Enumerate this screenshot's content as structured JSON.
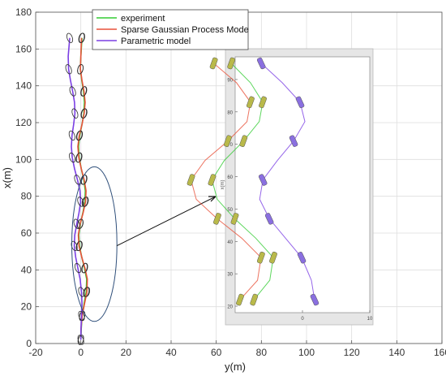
{
  "chart_data": {
    "type": "line",
    "title": "",
    "xlabel": "y(m)",
    "ylabel": "x(m)",
    "xlim": [
      -20,
      160
    ],
    "ylim": [
      0,
      180
    ],
    "xticks": [
      -20,
      0,
      20,
      40,
      60,
      80,
      100,
      120,
      140,
      160
    ],
    "yticks": [
      0,
      20,
      40,
      60,
      80,
      100,
      120,
      140,
      160,
      180
    ],
    "grid": true,
    "legend_position": "top-center",
    "series": [
      {
        "name": "experiment",
        "color": "#33cc33",
        "x": [
          0,
          0.2,
          0.6,
          1.5,
          2.4,
          2.6,
          1.6,
          0.4,
          -0.6,
          -0.9,
          -0.2,
          0.9,
          1.8,
          2.0,
          1.3,
          0.2,
          -0.7,
          -1.0,
          -0.5,
          0.5,
          1.3,
          1.6,
          1.2,
          0.4,
          -0.2,
          0.0,
          0.5
        ],
        "y": [
          2,
          8,
          15,
          22,
          28,
          35,
          41,
          47,
          53,
          59,
          65,
          71,
          77,
          83,
          89,
          95,
          101,
          107,
          113,
          119,
          125,
          131,
          137,
          143,
          149,
          156,
          166
        ]
      },
      {
        "name": "Sparse Gaussian Process Mode",
        "color": "#e8513a",
        "x": [
          0,
          0.1,
          0.6,
          1.7,
          2.7,
          2.9,
          1.8,
          0.4,
          -0.8,
          -1.1,
          -0.3,
          1.0,
          2.1,
          2.3,
          1.5,
          0.2,
          -0.9,
          -1.3,
          -0.7,
          0.5,
          1.5,
          1.9,
          1.4,
          0.5,
          -0.2,
          0.0,
          0.3
        ],
        "y": [
          2,
          8,
          15,
          22,
          28,
          35,
          41,
          47,
          53,
          59,
          65,
          71,
          77,
          83,
          89,
          95,
          101,
          107,
          113,
          119,
          125,
          131,
          137,
          143,
          149,
          156,
          166
        ]
      },
      {
        "name": "Parametric model",
        "color": "#7b3fe4",
        "x": [
          0,
          0.1,
          0.3,
          0.5,
          0.3,
          -0.3,
          -1.3,
          -2.3,
          -2.9,
          -2.7,
          -1.8,
          -0.8,
          -0.1,
          -0.4,
          -1.5,
          -2.8,
          -3.8,
          -4.2,
          -3.9,
          -3.2,
          -2.6,
          -2.8,
          -3.6,
          -4.6,
          -5.4,
          -5.6,
          -4.9
        ],
        "y": [
          2,
          8,
          15,
          22,
          28,
          35,
          41,
          47,
          53,
          59,
          65,
          71,
          77,
          83,
          89,
          95,
          101,
          107,
          113,
          119,
          125,
          131,
          137,
          143,
          149,
          156,
          166
        ]
      }
    ],
    "zoom_region": {
      "cx": 6,
      "cy": 54,
      "rx": 10,
      "ry": 42
    },
    "inset": {
      "xlabel": "x(m)",
      "ylabel": "",
      "xticks": [
        0,
        10
      ],
      "yticks": [
        20,
        30,
        40,
        50,
        60,
        70,
        80,
        90
      ],
      "xlim": [
        -10,
        10
      ],
      "ylim": [
        18,
        97
      ]
    }
  }
}
